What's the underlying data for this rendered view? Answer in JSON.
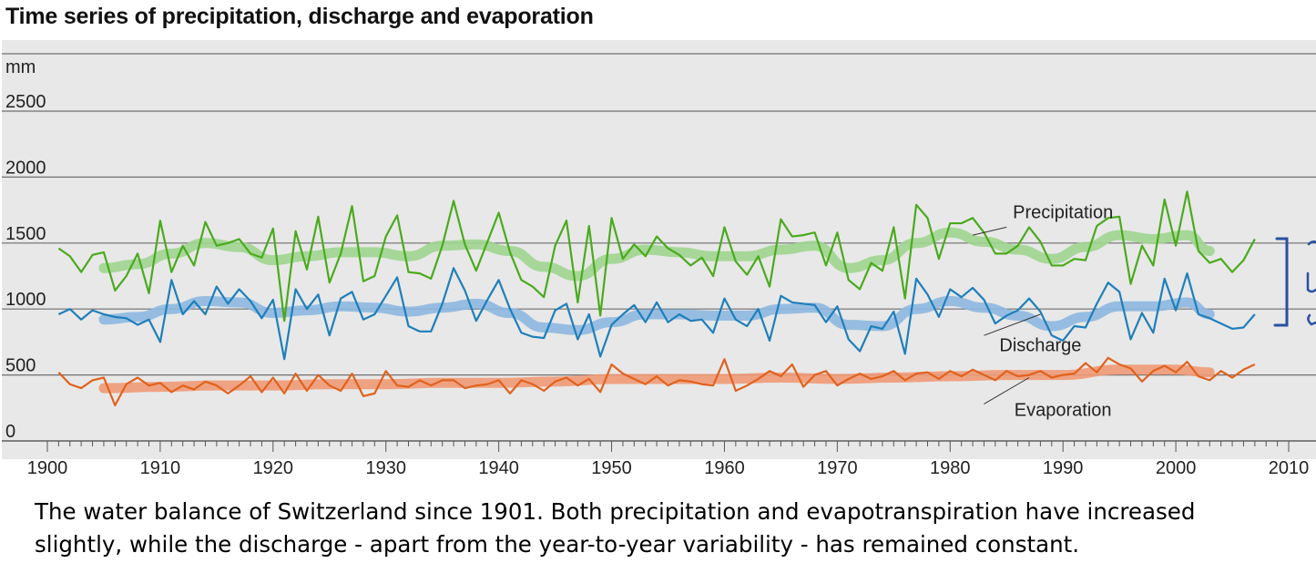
{
  "chart_data": {
    "type": "line",
    "title": "Time series of precipitation, discharge and evaporation",
    "ylabel": "mm",
    "xlim": [
      1900,
      2010
    ],
    "ylim": [
      0,
      2500
    ],
    "y_ticks": [
      "0",
      "500",
      "1000",
      "1500",
      "2000",
      "2500"
    ],
    "x_ticks": [
      "1900",
      "1910",
      "1920",
      "1930",
      "1940",
      "1950",
      "1960",
      "1970",
      "1980",
      "1990",
      "2000",
      "2010"
    ],
    "grid": true,
    "colors": {
      "precipitation": "#4aaa1c",
      "precipitation_smooth": "#9fd58f",
      "discharge": "#1e7fba",
      "discharge_smooth": "#8db8e0",
      "evaporation": "#e0621e",
      "evaporation_smooth": "#f09a76"
    },
    "x": [
      1901,
      1902,
      1903,
      1904,
      1905,
      1906,
      1907,
      1908,
      1909,
      1910,
      1911,
      1912,
      1913,
      1914,
      1915,
      1916,
      1917,
      1918,
      1919,
      1920,
      1921,
      1922,
      1923,
      1924,
      1925,
      1926,
      1927,
      1928,
      1929,
      1930,
      1931,
      1932,
      1933,
      1934,
      1935,
      1936,
      1937,
      1938,
      1939,
      1940,
      1941,
      1942,
      1943,
      1944,
      1945,
      1946,
      1947,
      1948,
      1949,
      1950,
      1951,
      1952,
      1953,
      1954,
      1955,
      1956,
      1957,
      1958,
      1959,
      1960,
      1961,
      1962,
      1963,
      1964,
      1965,
      1966,
      1967,
      1968,
      1969,
      1970,
      1971,
      1972,
      1973,
      1974,
      1975,
      1976,
      1977,
      1978,
      1979,
      1980,
      1981,
      1982,
      1983,
      1984,
      1985,
      1986,
      1987,
      1988,
      1989,
      1990,
      1991,
      1992,
      1993,
      1994,
      1995,
      1996,
      1997,
      1998,
      1999,
      2000,
      2001,
      2002,
      2003,
      2004,
      2005,
      2006,
      2007
    ],
    "series": [
      {
        "name": "Precipitation",
        "values": [
          1460,
          1400,
          1280,
          1410,
          1430,
          1140,
          1250,
          1420,
          1120,
          1670,
          1280,
          1480,
          1330,
          1660,
          1480,
          1500,
          1530,
          1420,
          1390,
          1610,
          910,
          1590,
          1300,
          1700,
          1200,
          1420,
          1780,
          1210,
          1250,
          1550,
          1710,
          1280,
          1270,
          1230,
          1480,
          1820,
          1490,
          1290,
          1510,
          1730,
          1430,
          1220,
          1170,
          1090,
          1480,
          1670,
          1050,
          1630,
          950,
          1690,
          1380,
          1490,
          1400,
          1550,
          1460,
          1410,
          1330,
          1390,
          1250,
          1620,
          1360,
          1260,
          1400,
          1170,
          1680,
          1550,
          1560,
          1580,
          1330,
          1580,
          1220,
          1150,
          1350,
          1290,
          1620,
          1080,
          1790,
          1690,
          1380,
          1650,
          1650,
          1690,
          1580,
          1420,
          1420,
          1480,
          1620,
          1510,
          1330,
          1330,
          1380,
          1370,
          1630,
          1690,
          1700,
          1190,
          1480,
          1330,
          1830,
          1480,
          1890,
          1440,
          1350,
          1380,
          1280,
          1370,
          1530
        ]
      },
      {
        "name": "Discharge",
        "values": [
          960,
          1000,
          920,
          990,
          960,
          940,
          930,
          880,
          920,
          750,
          1220,
          960,
          1060,
          960,
          1170,
          1040,
          1150,
          1060,
          930,
          1070,
          620,
          1150,
          1000,
          1110,
          800,
          1080,
          1130,
          920,
          960,
          1100,
          1240,
          870,
          830,
          830,
          1040,
          1310,
          1140,
          910,
          1070,
          1220,
          1000,
          820,
          790,
          780,
          990,
          1040,
          770,
          960,
          640,
          880,
          960,
          1030,
          900,
          1050,
          900,
          960,
          910,
          920,
          820,
          1080,
          920,
          870,
          1000,
          760,
          1100,
          1050,
          1040,
          1030,
          900,
          1020,
          770,
          680,
          870,
          850,
          980,
          660,
          1230,
          1110,
          940,
          1150,
          1090,
          1160,
          1070,
          890,
          950,
          990,
          1080,
          980,
          800,
          760,
          870,
          860,
          1040,
          1200,
          1130,
          770,
          970,
          820,
          1230,
          990,
          1270,
          960,
          930,
          890,
          850,
          860,
          960
        ]
      },
      {
        "name": "Evaporation",
        "values": [
          520,
          430,
          400,
          460,
          480,
          270,
          430,
          480,
          420,
          440,
          370,
          420,
          390,
          450,
          420,
          360,
          420,
          490,
          370,
          480,
          360,
          510,
          380,
          500,
          420,
          380,
          510,
          340,
          360,
          530,
          420,
          410,
          460,
          420,
          460,
          460,
          400,
          420,
          430,
          460,
          360,
          460,
          430,
          380,
          450,
          480,
          420,
          470,
          370,
          580,
          510,
          470,
          430,
          490,
          420,
          460,
          450,
          430,
          420,
          620,
          380,
          420,
          470,
          530,
          490,
          580,
          410,
          500,
          530,
          420,
          470,
          510,
          470,
          490,
          530,
          460,
          510,
          520,
          470,
          530,
          490,
          540,
          500,
          460,
          530,
          490,
          500,
          530,
          480,
          500,
          510,
          590,
          520,
          630,
          580,
          550,
          450,
          530,
          570,
          520,
          600,
          490,
          460,
          530,
          480,
          540,
          580
        ]
      }
    ],
    "smoothed": {
      "Precipitation": [
        [
          1905,
          1310
        ],
        [
          1908,
          1340
        ],
        [
          1911,
          1420
        ],
        [
          1914,
          1500
        ],
        [
          1917,
          1470
        ],
        [
          1920,
          1370
        ],
        [
          1923,
          1400
        ],
        [
          1926,
          1430
        ],
        [
          1929,
          1430
        ],
        [
          1932,
          1400
        ],
        [
          1935,
          1480
        ],
        [
          1938,
          1490
        ],
        [
          1941,
          1440
        ],
        [
          1944,
          1320
        ],
        [
          1947,
          1250
        ],
        [
          1950,
          1380
        ],
        [
          1953,
          1450
        ],
        [
          1956,
          1430
        ],
        [
          1959,
          1400
        ],
        [
          1962,
          1400
        ],
        [
          1965,
          1450
        ],
        [
          1968,
          1480
        ],
        [
          1971,
          1310
        ],
        [
          1974,
          1370
        ],
        [
          1977,
          1500
        ],
        [
          1980,
          1580
        ],
        [
          1983,
          1510
        ],
        [
          1986,
          1450
        ],
        [
          1989,
          1380
        ],
        [
          1992,
          1470
        ],
        [
          1995,
          1560
        ],
        [
          1998,
          1530
        ],
        [
          2001,
          1560
        ],
        [
          2003,
          1440
        ]
      ],
      "Discharge": [
        [
          1905,
          920
        ],
        [
          1908,
          940
        ],
        [
          1911,
          1000
        ],
        [
          1914,
          1060
        ],
        [
          1917,
          1050
        ],
        [
          1920,
          970
        ],
        [
          1923,
          990
        ],
        [
          1926,
          1020
        ],
        [
          1929,
          1010
        ],
        [
          1932,
          980
        ],
        [
          1935,
          1010
        ],
        [
          1938,
          1040
        ],
        [
          1941,
          970
        ],
        [
          1944,
          860
        ],
        [
          1947,
          840
        ],
        [
          1950,
          900
        ],
        [
          1953,
          960
        ],
        [
          1956,
          960
        ],
        [
          1959,
          950
        ],
        [
          1962,
          950
        ],
        [
          1965,
          1000
        ],
        [
          1968,
          1010
        ],
        [
          1971,
          880
        ],
        [
          1974,
          870
        ],
        [
          1977,
          1000
        ],
        [
          1980,
          1060
        ],
        [
          1983,
          1010
        ],
        [
          1986,
          950
        ],
        [
          1989,
          870
        ],
        [
          1992,
          940
        ],
        [
          1995,
          1020
        ],
        [
          1998,
          1020
        ],
        [
          2001,
          1050
        ],
        [
          2003,
          960
        ]
      ],
      "Evaporation": [
        [
          1905,
          400
        ],
        [
          1910,
          410
        ],
        [
          1915,
          420
        ],
        [
          1920,
          420
        ],
        [
          1925,
          430
        ],
        [
          1930,
          430
        ],
        [
          1935,
          440
        ],
        [
          1940,
          440
        ],
        [
          1945,
          450
        ],
        [
          1950,
          470
        ],
        [
          1955,
          470
        ],
        [
          1960,
          470
        ],
        [
          1965,
          480
        ],
        [
          1970,
          470
        ],
        [
          1975,
          480
        ],
        [
          1980,
          490
        ],
        [
          1985,
          500
        ],
        [
          1990,
          500
        ],
        [
          1995,
          540
        ],
        [
          2000,
          540
        ],
        [
          2003,
          520
        ]
      ]
    },
    "annotations": [
      {
        "text": "Precipitation",
        "x": 1990,
        "y": 1690
      },
      {
        "text": "Discharge",
        "x": 1988,
        "y": 680
      },
      {
        "text": "Evaporation",
        "x": 1990,
        "y": 190
      }
    ]
  },
  "caption": {
    "line1": "The water balance of Switzerland since 1901. Both precipitation and evapotranspiration have increased",
    "line2": "slightly, while the discharge - apart from the year-to-year variability - has remained constant."
  }
}
